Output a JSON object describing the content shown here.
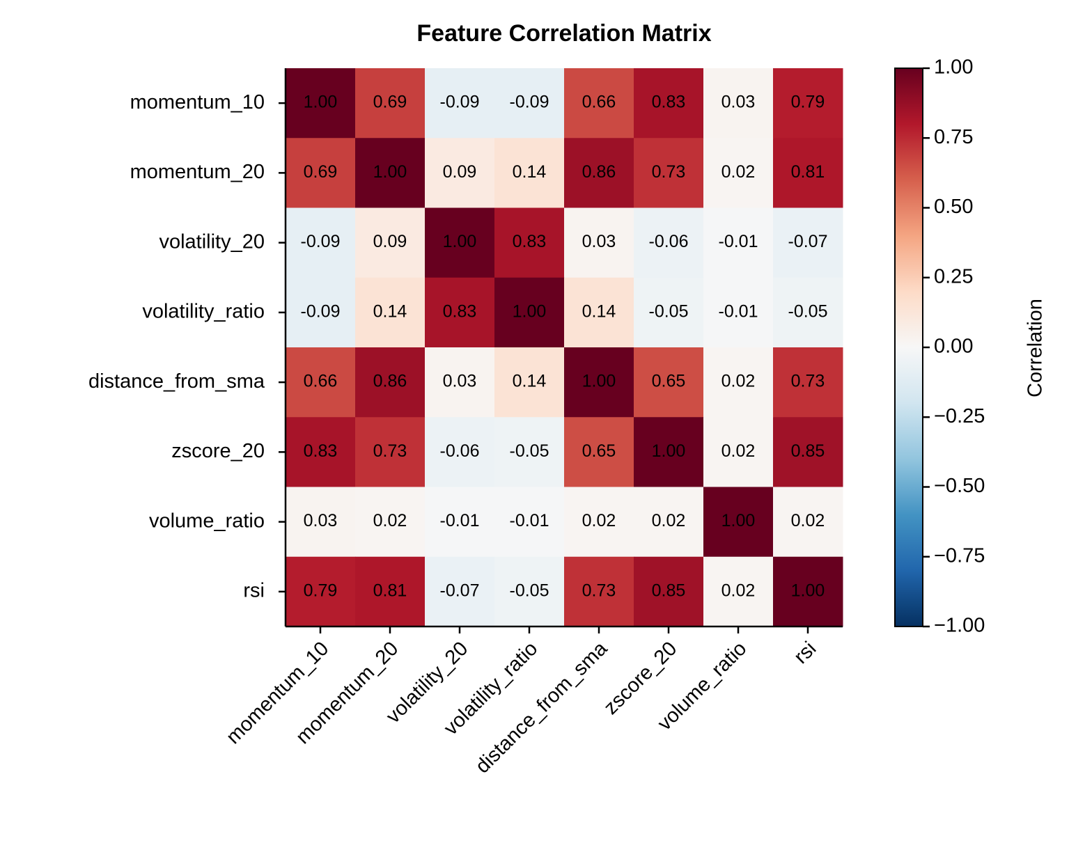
{
  "chart_data": {
    "type": "heatmap",
    "title": "Feature Correlation Matrix",
    "x": [
      "momentum_10",
      "momentum_20",
      "volatility_20",
      "volatility_ratio",
      "distance_from_sma",
      "zscore_20",
      "volume_ratio",
      "rsi"
    ],
    "y": [
      "momentum_10",
      "momentum_20",
      "volatility_20",
      "volatility_ratio",
      "distance_from_sma",
      "zscore_20",
      "volume_ratio",
      "rsi"
    ],
    "values": [
      [
        1,
        0.69,
        -0.09,
        -0.09,
        0.66,
        0.83,
        0.03,
        0.79
      ],
      [
        0.69,
        1,
        0.09,
        0.14,
        0.86,
        0.73,
        0.02,
        0.81
      ],
      [
        -0.09,
        0.09,
        1,
        0.83,
        0.03,
        -0.06,
        -0.01,
        -0.07
      ],
      [
        -0.09,
        0.14,
        0.83,
        1,
        0.14,
        -0.05,
        -0.01,
        -0.05
      ],
      [
        0.66,
        0.86,
        0.03,
        0.14,
        1,
        0.65,
        0.02,
        0.73
      ],
      [
        0.83,
        0.73,
        -0.06,
        -0.05,
        0.65,
        1,
        0.02,
        0.85
      ],
      [
        0.03,
        0.02,
        -0.01,
        -0.01,
        0.02,
        0.02,
        1,
        0.02
      ],
      [
        0.79,
        0.81,
        -0.07,
        -0.05,
        0.73,
        0.85,
        0.02,
        1
      ]
    ],
    "value_labels": [
      [
        "1.00",
        "0.69",
        "-0.09",
        "-0.09",
        "0.66",
        "0.83",
        "0.03",
        "0.79"
      ],
      [
        "0.69",
        "1.00",
        "0.09",
        "0.14",
        "0.86",
        "0.73",
        "0.02",
        "0.81"
      ],
      [
        "-0.09",
        "0.09",
        "1.00",
        "0.83",
        "0.03",
        "-0.06",
        "-0.01",
        "-0.07"
      ],
      [
        "-0.09",
        "0.14",
        "0.83",
        "1.00",
        "0.14",
        "-0.05",
        "-0.01",
        "-0.05"
      ],
      [
        "0.66",
        "0.86",
        "0.03",
        "0.14",
        "1.00",
        "0.65",
        "0.02",
        "0.73"
      ],
      [
        "0.83",
        "0.73",
        "-0.06",
        "-0.05",
        "0.65",
        "1.00",
        "0.02",
        "0.85"
      ],
      [
        "0.03",
        "0.02",
        "-0.01",
        "-0.01",
        "0.02",
        "0.02",
        "1.00",
        "0.02"
      ],
      [
        "0.79",
        "0.81",
        "-0.07",
        "-0.05",
        "0.73",
        "0.85",
        "0.02",
        "1.00"
      ]
    ],
    "colormap": "RdBu_r",
    "zlim": [
      -1,
      1
    ],
    "zticks": [
      {
        "value": -1,
        "label": "−1.00"
      },
      {
        "value": -0.75,
        "label": "−0.75"
      },
      {
        "value": -0.5,
        "label": "−0.50"
      },
      {
        "value": -0.25,
        "label": "−0.25"
      },
      {
        "value": 0,
        "label": "0.00"
      },
      {
        "value": 0.25,
        "label": "0.25"
      },
      {
        "value": 0.5,
        "label": "0.50"
      },
      {
        "value": 0.75,
        "label": "0.75"
      },
      {
        "value": 1,
        "label": "1.00"
      }
    ],
    "colorbar_label": "Correlation"
  }
}
